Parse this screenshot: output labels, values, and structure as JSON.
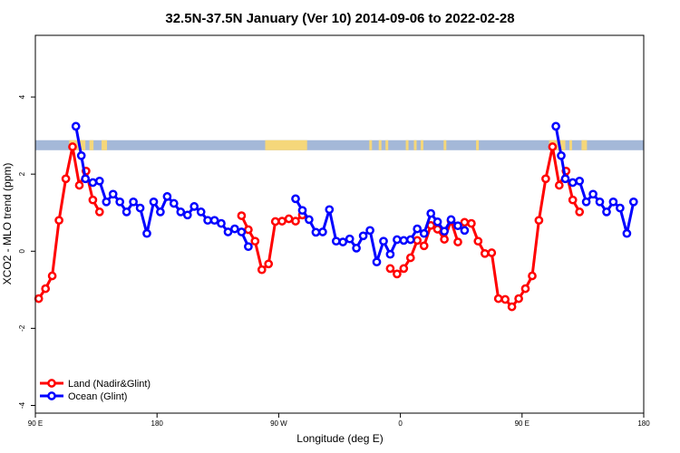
{
  "chart_data": {
    "type": "line",
    "title": "32.5N-37.5N January (Ver 10)   2014-09-06 to 2022-02-28",
    "xlabel": "Longitude (deg E)",
    "ylabel": "XCO2 - MLO trend (ppm)",
    "xlim": [
      90,
      540
    ],
    "ylim": [
      -4.2,
      5.6
    ],
    "x_ticks": [
      {
        "value": 90,
        "label": "90 E"
      },
      {
        "value": 180,
        "label": "180"
      },
      {
        "value": 270,
        "label": "90 W"
      },
      {
        "value": 360,
        "label": "0"
      },
      {
        "value": 450,
        "label": "90 E"
      },
      {
        "value": 540,
        "label": "180"
      }
    ],
    "y_ticks": [
      {
        "value": -4,
        "label": "-4"
      },
      {
        "value": -2,
        "label": "-2"
      },
      {
        "value": 0,
        "label": "0"
      },
      {
        "value": 2,
        "label": "2"
      },
      {
        "value": 4,
        "label": "4"
      }
    ],
    "legend_position": "bottom-left",
    "colors": {
      "land": "#ff0000",
      "ocean": "#0000ff",
      "band_ocean": "#a4b8d8",
      "band_land": "#f5d77a"
    },
    "band": {
      "y_low": 2.62,
      "y_high": 2.88
    },
    "series": [
      {
        "name": "Land (Nadir&Glint)",
        "color": "#ff0000",
        "segments": [
          [
            [
              92.5,
              -1.23
            ],
            [
              97.5,
              -0.97
            ],
            [
              102.5,
              -0.64
            ],
            [
              107.5,
              0.8
            ],
            [
              112.5,
              1.88
            ],
            [
              117.5,
              2.71
            ],
            [
              122.5,
              1.71
            ],
            [
              127.5,
              2.08
            ],
            [
              132.5,
              1.33
            ],
            [
              137.5,
              1.02
            ]
          ],
          [
            [
              242.5,
              0.92
            ],
            [
              247.5,
              0.56
            ],
            [
              252.5,
              0.26
            ],
            [
              257.5,
              -0.48
            ],
            [
              262.5,
              -0.33
            ],
            [
              267.5,
              0.77
            ],
            [
              272.5,
              0.78
            ],
            [
              277.5,
              0.84
            ],
            [
              282.5,
              0.78
            ],
            [
              287.5,
              0.94
            ]
          ],
          [
            [
              352.5,
              -0.45
            ],
            [
              357.5,
              -0.59
            ],
            [
              362.5,
              -0.45
            ],
            [
              367.5,
              -0.17
            ],
            [
              372.5,
              0.28
            ]
          ],
          [
            [
              377.5,
              0.14
            ],
            [
              382.5,
              0.67
            ],
            [
              387.5,
              0.57
            ],
            [
              392.5,
              0.31
            ],
            [
              397.5,
              0.79
            ],
            [
              402.5,
              0.24
            ]
          ],
          [
            [
              407.5,
              0.75
            ],
            [
              412.5,
              0.72
            ],
            [
              417.5,
              0.26
            ],
            [
              422.5,
              -0.06
            ],
            [
              427.5,
              -0.04
            ],
            [
              432.5,
              -1.23
            ],
            [
              437.5,
              -1.25
            ],
            [
              442.5,
              -1.44
            ],
            [
              447.5,
              -1.23
            ],
            [
              452.5,
              -0.97
            ],
            [
              457.5,
              -0.64
            ],
            [
              462.5,
              0.8
            ],
            [
              467.5,
              1.88
            ],
            [
              472.5,
              2.71
            ],
            [
              477.5,
              1.71
            ],
            [
              482.5,
              2.08
            ],
            [
              487.5,
              1.33
            ],
            [
              492.5,
              1.02
            ]
          ]
        ]
      },
      {
        "name": "Ocean (Glint)",
        "color": "#0000ff",
        "segments": [
          [
            [
              120,
              3.24
            ],
            [
              124,
              2.48
            ],
            [
              127,
              1.88
            ],
            [
              132.5,
              1.78
            ],
            [
              137.5,
              1.82
            ],
            [
              142.5,
              1.28
            ],
            [
              147.5,
              1.48
            ],
            [
              152.5,
              1.28
            ],
            [
              157.5,
              1.02
            ],
            [
              162.5,
              1.28
            ],
            [
              167.5,
              1.12
            ],
            [
              172.5,
              0.46
            ],
            [
              177.5,
              1.28
            ],
            [
              182.5,
              1.02
            ],
            [
              187.5,
              1.42
            ],
            [
              192.5,
              1.24
            ],
            [
              197.5,
              1.02
            ],
            [
              202.5,
              0.94
            ],
            [
              207.5,
              1.16
            ],
            [
              212.5,
              1.02
            ],
            [
              217.5,
              0.8
            ],
            [
              222.5,
              0.8
            ],
            [
              227.5,
              0.72
            ],
            [
              232.5,
              0.5
            ],
            [
              237.5,
              0.58
            ],
            [
              242.5,
              0.5
            ],
            [
              247.5,
              0.12
            ]
          ],
          [
            [
              282.5,
              1.36
            ],
            [
              287.5,
              1.06
            ],
            [
              292.5,
              0.82
            ],
            [
              297.5,
              0.49
            ],
            [
              302.5,
              0.5
            ],
            [
              307.5,
              1.08
            ],
            [
              312.5,
              0.26
            ],
            [
              317.5,
              0.24
            ],
            [
              322.5,
              0.32
            ],
            [
              327.5,
              0.08
            ],
            [
              332.5,
              0.4
            ],
            [
              337.5,
              0.54
            ],
            [
              342.5,
              -0.28
            ],
            [
              347.5,
              0.26
            ],
            [
              352.5,
              -0.08
            ],
            [
              357.5,
              0.3
            ],
            [
              362.5,
              0.28
            ],
            [
              367.5,
              0.3
            ],
            [
              372.5,
              0.58
            ],
            [
              377.5,
              0.46
            ],
            [
              382.5,
              0.98
            ],
            [
              387.5,
              0.76
            ],
            [
              392.5,
              0.52
            ],
            [
              397.5,
              0.82
            ],
            [
              402.5,
              0.66
            ],
            [
              407.5,
              0.54
            ]
          ],
          [
            [
              475,
              3.24
            ],
            [
              479,
              2.48
            ],
            [
              482,
              1.88
            ],
            [
              487.5,
              1.78
            ],
            [
              492.5,
              1.82
            ],
            [
              497.5,
              1.28
            ],
            [
              502.5,
              1.48
            ],
            [
              507.5,
              1.28
            ],
            [
              512.5,
              1.02
            ],
            [
              517.5,
              1.28
            ],
            [
              522.5,
              1.12
            ],
            [
              527.5,
              0.46
            ],
            [
              532.5,
              1.28
            ]
          ]
        ]
      }
    ]
  }
}
